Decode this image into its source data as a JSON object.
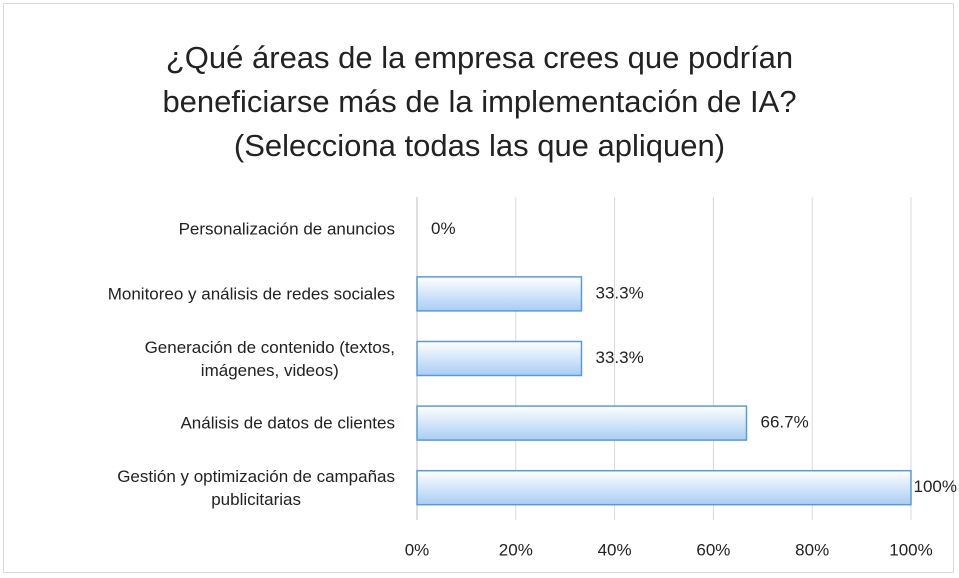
{
  "chart_data": {
    "type": "bar",
    "orientation": "horizontal",
    "title": "¿Qué áreas de la empresa crees que podrían\nbeneficiarse más de la implementación de IA?\n(Selecciona todas las que apliquen)",
    "categories": [
      "Personalización de anuncios",
      "Monitoreo y análisis de redes sociales",
      "Generación de contenido (textos,\nimágenes, videos)",
      "Análisis de datos de clientes",
      "Gestión y optimización de campañas\npublicitarias"
    ],
    "values": [
      0,
      33.3,
      33.3,
      66.7,
      100
    ],
    "value_labels": [
      "0%",
      "33.3%",
      "33.3%",
      "66.7%",
      "100%"
    ],
    "color": "#a9cdf3",
    "edge_color": "#5b9bd5",
    "xlim": [
      0,
      100
    ],
    "xticks": [
      {
        "value": 0,
        "label": "0%"
      },
      {
        "value": 20,
        "label": "20%"
      },
      {
        "value": 40,
        "label": "40%"
      },
      {
        "value": 60,
        "label": "60%"
      },
      {
        "value": 80,
        "label": "80%"
      },
      {
        "value": 100,
        "label": "100%"
      }
    ],
    "grid": true
  }
}
